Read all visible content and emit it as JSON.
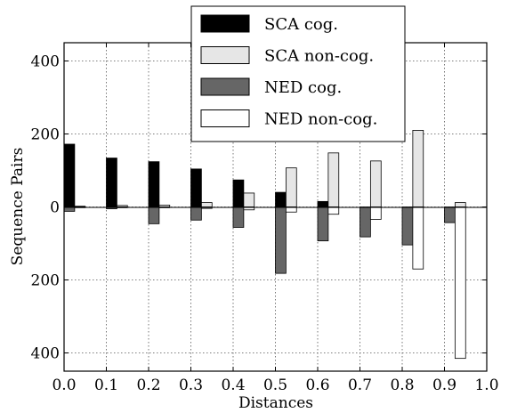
{
  "chart_data": {
    "type": "bar",
    "orientation": "mirrored",
    "xlabel": "Distances",
    "ylabel": "Sequence Pairs",
    "xlim": [
      0.0,
      1.0
    ],
    "ylim": [
      -450,
      450
    ],
    "x_ticks": [
      "0.0",
      "0.1",
      "0.2",
      "0.3",
      "0.4",
      "0.5",
      "0.6",
      "0.7",
      "0.8",
      "0.9",
      "1.0"
    ],
    "y_ticks": [
      {
        "value": 400,
        "label": "400"
      },
      {
        "value": 200,
        "label": "200"
      },
      {
        "value": 0,
        "label": "0"
      },
      {
        "value": -200,
        "label": "200"
      },
      {
        "value": -400,
        "label": "400"
      }
    ],
    "bin_width": 0.05,
    "grid": true,
    "legend_position": "top-center",
    "series": [
      {
        "name": "SCA cog.",
        "color": "#000000",
        "direction": "up",
        "slot": 0,
        "values": [
          172,
          134,
          124,
          104,
          74,
          40,
          15,
          0,
          0,
          0
        ]
      },
      {
        "name": "SCA non-cog.",
        "color": "#e6e6e6",
        "direction": "up",
        "slot": 1,
        "values": [
          2,
          4,
          5,
          12,
          38,
          107,
          148,
          126,
          210,
          12
        ]
      },
      {
        "name": "NED cog.",
        "color": "#666666",
        "direction": "down",
        "slot": 0,
        "values": [
          12,
          5,
          46,
          36,
          56,
          182,
          93,
          82,
          104,
          43
        ]
      },
      {
        "name": "NED non-cog.",
        "color": "#ffffff",
        "direction": "down",
        "slot": 1,
        "values": [
          2,
          2,
          2,
          4,
          8,
          14,
          20,
          34,
          170,
          415
        ]
      }
    ]
  }
}
